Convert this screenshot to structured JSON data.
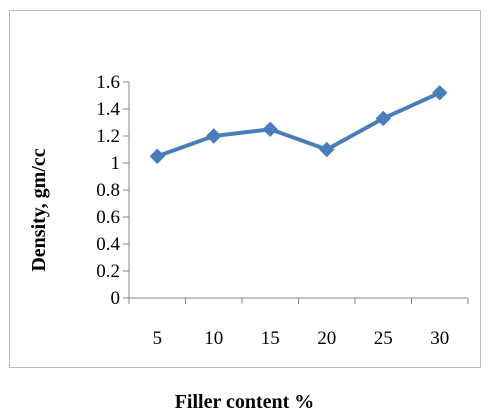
{
  "chart_data": {
    "type": "line",
    "categories": [
      "5",
      "10",
      "15",
      "20",
      "25",
      "30"
    ],
    "series": [
      {
        "values": [
          1.05,
          1.2,
          1.25,
          1.1,
          1.33,
          1.52
        ],
        "color": "#4a7ebb",
        "marker": "diamond"
      }
    ],
    "xlabel": "Filler content %",
    "ylabel": "Density, gm/cc",
    "ylim": [
      0,
      1.6
    ],
    "yticks": [
      "0",
      "0.2",
      "0.4",
      "0.6",
      "0.8",
      "1",
      "1.2",
      "1.4",
      "1.6"
    ],
    "grid": false,
    "legend": "none"
  }
}
